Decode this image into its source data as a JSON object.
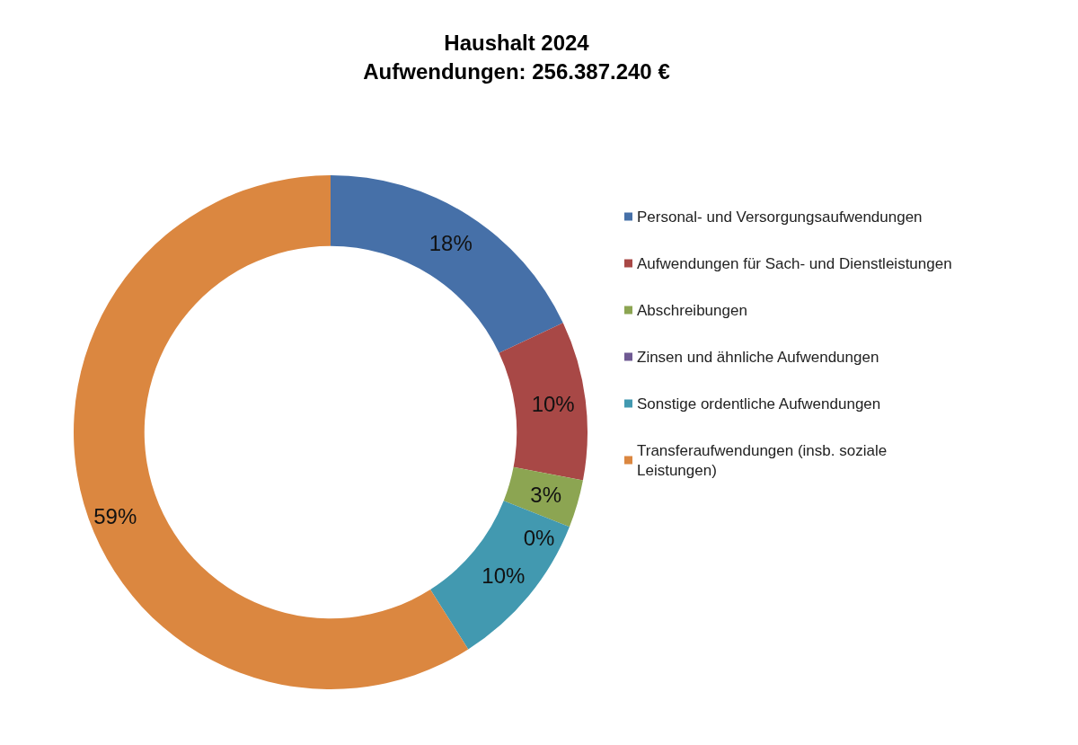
{
  "chart_data": {
    "type": "donut",
    "title": "Haushalt 2024",
    "subtitle": "Aufwendungen: 256.387.240 €",
    "categories": [
      "Personal- und Versorgungsaufwendungen",
      "Aufwendungen für Sach- und Dienstleistungen",
      "Abschreibungen",
      "Zinsen und ähnliche Aufwendungen",
      "Sonstige ordentliche Aufwendungen",
      "Transferaufwendungen (insb. soziale Leistungen)"
    ],
    "values": [
      18,
      10,
      3,
      0,
      10,
      59
    ],
    "colors": [
      "#4670a8",
      "#a84846",
      "#8ca552",
      "#6f5a93",
      "#4299b0",
      "#db8740"
    ],
    "value_labels": [
      "18%",
      "10%",
      "3%",
      "0%",
      "10%",
      "59%"
    ],
    "legend": "right"
  }
}
